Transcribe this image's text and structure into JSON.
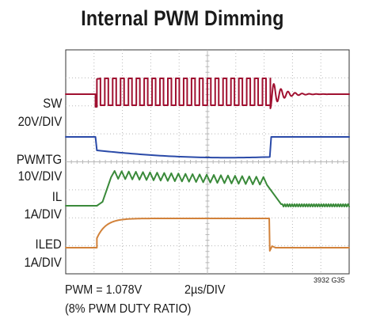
{
  "title": "Internal PWM Dimming",
  "channels": [
    {
      "name": "SW",
      "scale": "20V/DIV",
      "color": "#a01030"
    },
    {
      "name": "PWMTG",
      "scale": "10V/DIV",
      "color": "#2a4aa8"
    },
    {
      "name": "IL",
      "scale": "1A/DIV",
      "color": "#3a8a3a"
    },
    {
      "name": "ILED",
      "scale": "1A/DIV",
      "color": "#d2823a"
    }
  ],
  "footer": {
    "pwm": "PWM = 1.078V",
    "timebase": "2µs/DIV",
    "duty": "(8% PWM DUTY RATIO)",
    "figure_code": "3932 G35"
  },
  "chart_data": {
    "type": "line",
    "title": "Internal PWM Dimming",
    "time_per_div": "2µs/DIV",
    "divisions": {
      "x": 10,
      "y": 8
    },
    "grid": true,
    "x": [
      0.0,
      1.1,
      1.1,
      1.6,
      2.2,
      3.6,
      5.0,
      6.2,
      7.0,
      7.2,
      7.5,
      8.0,
      10.0
    ],
    "xlabel": "",
    "ylabel": "",
    "series": [
      {
        "name": "SW",
        "values": [
          0,
          0,
          1,
          1,
          1,
          1,
          1,
          1,
          1,
          0,
          0,
          0,
          0
        ]
      },
      {
        "name": "PWMTG",
        "values": [
          1,
          1,
          0.18,
          0.1,
          0.05,
          0,
          0,
          0.05,
          0.1,
          1,
          1,
          1,
          1
        ]
      },
      {
        "name": "IL",
        "values": [
          0,
          0,
          0.2,
          1.15,
          1.05,
          1.0,
          1.0,
          0.95,
          0.9,
          0.05,
          0,
          0,
          0
        ]
      },
      {
        "name": "ILED",
        "values": [
          0,
          0,
          0.75,
          0.93,
          0.98,
          1.0,
          1.0,
          1.0,
          1.0,
          0,
          0,
          0,
          0
        ]
      }
    ]
  }
}
